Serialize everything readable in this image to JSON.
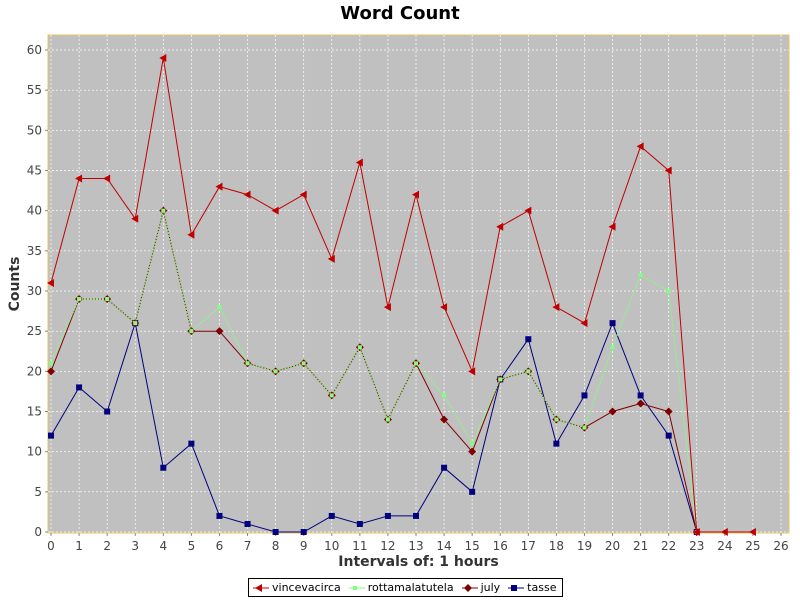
{
  "chart_data": {
    "type": "line",
    "title": "Word Count",
    "xlabel": "Intervals of: 1 hours",
    "ylabel": "Counts",
    "xlim": [
      0,
      26
    ],
    "ylim": [
      0,
      61
    ],
    "x_ticks": [
      0,
      1,
      2,
      3,
      4,
      5,
      6,
      7,
      8,
      9,
      10,
      11,
      12,
      13,
      14,
      15,
      16,
      17,
      18,
      19,
      20,
      21,
      22,
      23,
      24,
      25,
      26
    ],
    "y_ticks": [
      0,
      5,
      10,
      15,
      20,
      25,
      30,
      35,
      40,
      45,
      50,
      55,
      60
    ],
    "grid": true,
    "legend_position": "bottom",
    "plot_background": "#c0c0c0",
    "series": [
      {
        "name": "vincevacirca",
        "color": "#c00000",
        "marker": "triangle-left",
        "x": [
          0,
          1,
          2,
          3,
          4,
          5,
          6,
          7,
          8,
          9,
          10,
          11,
          12,
          13,
          14,
          15,
          16,
          17,
          18,
          19,
          20,
          21,
          22,
          23,
          24,
          25
        ],
        "values": [
          31,
          44,
          44,
          39,
          59,
          37,
          43,
          42,
          40,
          42,
          34,
          46,
          28,
          42,
          28,
          20,
          38,
          40,
          28,
          26,
          38,
          48,
          45,
          0,
          0,
          0
        ]
      },
      {
        "name": "rottamalatutela",
        "color": "#80ff80",
        "marker": "square-small",
        "x": [
          0,
          1,
          2,
          3,
          4,
          5,
          6,
          7,
          8,
          9,
          10,
          11,
          12,
          13,
          14,
          15,
          16,
          17,
          18,
          19,
          20,
          21,
          22,
          23
        ],
        "values": [
          21,
          29,
          29,
          26,
          40,
          25,
          28,
          21,
          20,
          21,
          17,
          23,
          14,
          21,
          17,
          11,
          19,
          20,
          14,
          13,
          23,
          32,
          30,
          0
        ]
      },
      {
        "name": "july",
        "color": "#800000",
        "marker": "diamond",
        "x": [
          0,
          1,
          2,
          3,
          4,
          5,
          6,
          7,
          8,
          9,
          10,
          11,
          12,
          13,
          14,
          15,
          16,
          17,
          18,
          19,
          20,
          21,
          22,
          23
        ],
        "values": [
          20,
          29,
          29,
          26,
          40,
          25,
          25,
          21,
          20,
          21,
          17,
          23,
          14,
          21,
          14,
          10,
          19,
          20,
          14,
          13,
          15,
          16,
          15,
          0
        ]
      },
      {
        "name": "tasse",
        "color": "#000080",
        "marker": "square",
        "x": [
          0,
          1,
          2,
          3,
          4,
          5,
          6,
          7,
          8,
          9,
          10,
          11,
          12,
          13,
          14,
          15,
          16,
          17,
          18,
          19,
          20,
          21,
          22,
          23
        ],
        "values": [
          12,
          18,
          15,
          26,
          8,
          11,
          2,
          1,
          0,
          0,
          2,
          1,
          2,
          2,
          8,
          5,
          19,
          24,
          11,
          17,
          26,
          17,
          12,
          0
        ]
      }
    ]
  }
}
